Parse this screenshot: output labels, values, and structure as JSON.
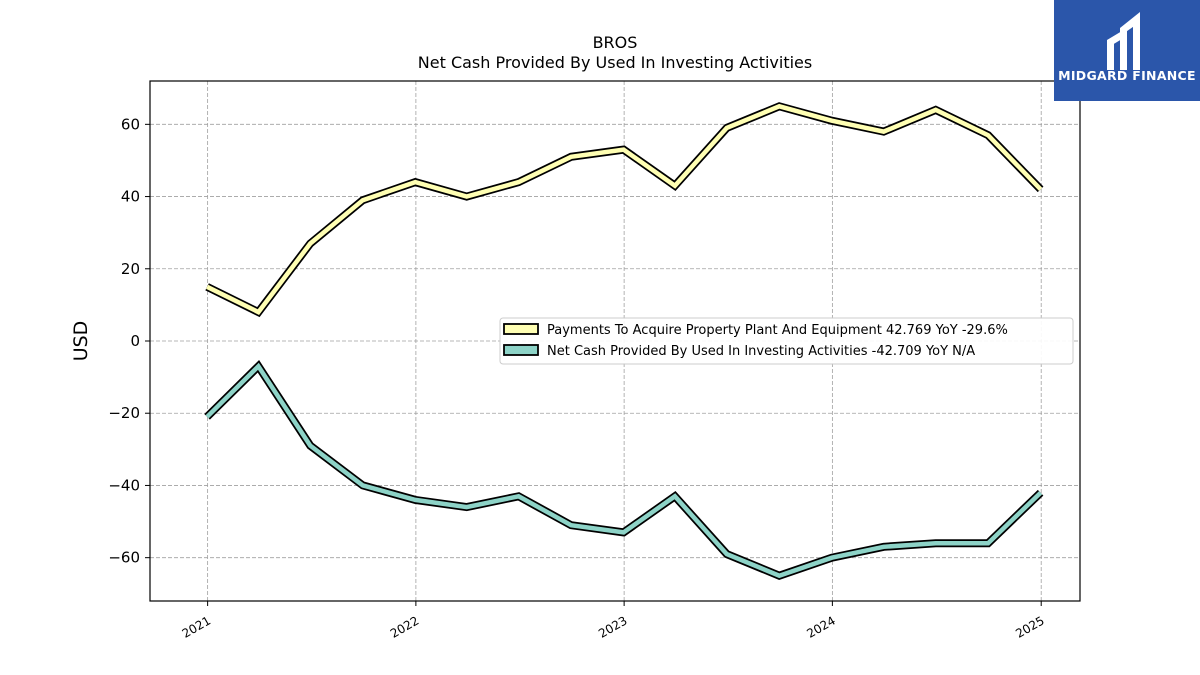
{
  "logo": {
    "text": "MIDGARD FINANCE",
    "background": "#2b56aa"
  },
  "chart_data": {
    "type": "line",
    "title": "BROS",
    "subtitle": "Net Cash Provided By Used In Investing Activities",
    "xlabel": "",
    "ylabel": "USD",
    "x_tick_labels": [
      "2021",
      "2022",
      "2023",
      "2024",
      "2025"
    ],
    "y_ticks": [
      -60,
      -40,
      -20,
      0,
      20,
      40,
      60
    ],
    "ylim": [
      -72,
      72
    ],
    "xlim": [
      "2020-09-22",
      "2025-03-10"
    ],
    "grid": true,
    "legend_position": "center-right",
    "x": [
      "2020-12-31",
      "2021-03-31",
      "2021-06-30",
      "2021-09-30",
      "2021-12-31",
      "2022-03-31",
      "2022-06-30",
      "2022-09-30",
      "2022-12-31",
      "2023-03-31",
      "2023-06-30",
      "2023-09-30",
      "2023-12-31",
      "2024-03-31",
      "2024-06-30",
      "2024-09-30",
      "2024-12-31"
    ],
    "series": [
      {
        "name": "Payments To Acquire Property Plant And Equipment",
        "legend_label": "Payments To Acquire Property Plant And Equipment  42.769 YoY -29.6%",
        "color": "#ffffb3",
        "values": [
          15,
          8,
          27,
          39,
          44,
          40,
          44,
          51,
          53,
          43,
          59,
          65,
          61,
          58,
          64,
          57,
          42
        ]
      },
      {
        "name": "Net Cash Provided By Used In Investing Activities",
        "legend_label": "Net Cash Provided By Used In Investing Activities  -42.709 YoY N/A",
        "color": "#8dd3c7",
        "values": [
          -21,
          -7,
          -29,
          -40,
          -44,
          -46,
          -43,
          -51,
          -53,
          -43,
          -59,
          -65,
          -60,
          -57,
          -56,
          -56,
          -42
        ]
      }
    ]
  }
}
